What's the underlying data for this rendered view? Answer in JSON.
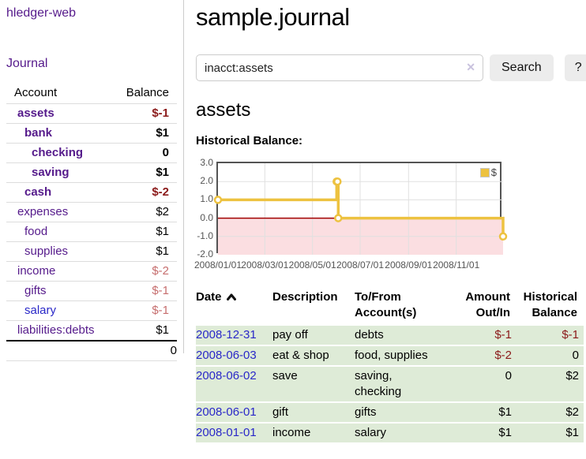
{
  "app": {
    "title": "hledger-web"
  },
  "sidebar": {
    "journal_link": "Journal",
    "table": {
      "headers": {
        "account": "Account",
        "balance": "Balance"
      },
      "rows": [
        {
          "account": "assets",
          "balance": "$-1"
        },
        {
          "account": "bank",
          "balance": "$1"
        },
        {
          "account": "checking",
          "balance": "0"
        },
        {
          "account": "saving",
          "balance": "$1"
        },
        {
          "account": "cash",
          "balance": "$-2"
        },
        {
          "account": "expenses",
          "balance": "$2"
        },
        {
          "account": "food",
          "balance": "$1"
        },
        {
          "account": "supplies",
          "balance": "$1"
        },
        {
          "account": "income",
          "balance": "$-2"
        },
        {
          "account": "gifts",
          "balance": "$-1"
        },
        {
          "account": "salary",
          "balance": "$-1"
        },
        {
          "account": "liabilities:debts",
          "balance": "$1"
        }
      ],
      "total": "0"
    }
  },
  "header": {
    "title": "sample.journal"
  },
  "search": {
    "value": "inacct:assets",
    "clear_icon": "✕",
    "button_label": "Search",
    "help_label": "?"
  },
  "register": {
    "heading": "assets",
    "chart_label": "Historical Balance:",
    "table": {
      "headers": {
        "date": "Date",
        "sort_indicator": "ascending",
        "description": "Description",
        "tofrom_line1": "To/From",
        "tofrom_line2": "Account(s)",
        "amount_line1": "Amount",
        "amount_line2": "Out/In",
        "balance_line1": "Historical",
        "balance_line2": "Balance"
      },
      "rows": [
        {
          "date": "2008-12-31",
          "description": "pay off",
          "accounts": "debts",
          "amount": "$-1",
          "balance": "$-1"
        },
        {
          "date": "2008-06-03",
          "description": "eat & shop",
          "accounts": "food, supplies",
          "amount": "$-2",
          "balance": "0"
        },
        {
          "date": "2008-06-02",
          "description": "save",
          "accounts": "saving, checking",
          "amount": "0",
          "balance": "$2"
        },
        {
          "date": "2008-06-01",
          "description": "gift",
          "accounts": "gifts",
          "amount": "$1",
          "balance": "$2"
        },
        {
          "date": "2008-01-01",
          "description": "income",
          "accounts": "salary",
          "amount": "$1",
          "balance": "$1"
        }
      ]
    }
  },
  "chart_data": {
    "type": "line",
    "step": true,
    "title": "Historical Balance",
    "series": [
      {
        "name": "$",
        "color": "#edc240",
        "points": [
          [
            "2008-01-01",
            1
          ],
          [
            "2008-06-01",
            2
          ],
          [
            "2008-06-02",
            2
          ],
          [
            "2008-06-03",
            0
          ],
          [
            "2008-12-31",
            -1
          ]
        ]
      }
    ],
    "ylim": [
      -2,
      3
    ],
    "yticks": [
      3.0,
      2.0,
      1.0,
      0.0,
      -1.0,
      -2.0
    ],
    "xticks": [
      "2008/01/01",
      "2008/03/01",
      "2008/05/01",
      "2008/07/01",
      "2008/09/01",
      "2008/11/01"
    ],
    "x_domain": [
      "2008-01-01",
      "2008-12-31"
    ],
    "legend": {
      "label": "$",
      "position": "top-right"
    },
    "grid": true,
    "colors": {
      "series": "#edc240",
      "below_zero_fill": "#fbdee1",
      "zero_line": "#a00000",
      "grid_line": "#e0e0e0",
      "border": "#545454"
    }
  }
}
